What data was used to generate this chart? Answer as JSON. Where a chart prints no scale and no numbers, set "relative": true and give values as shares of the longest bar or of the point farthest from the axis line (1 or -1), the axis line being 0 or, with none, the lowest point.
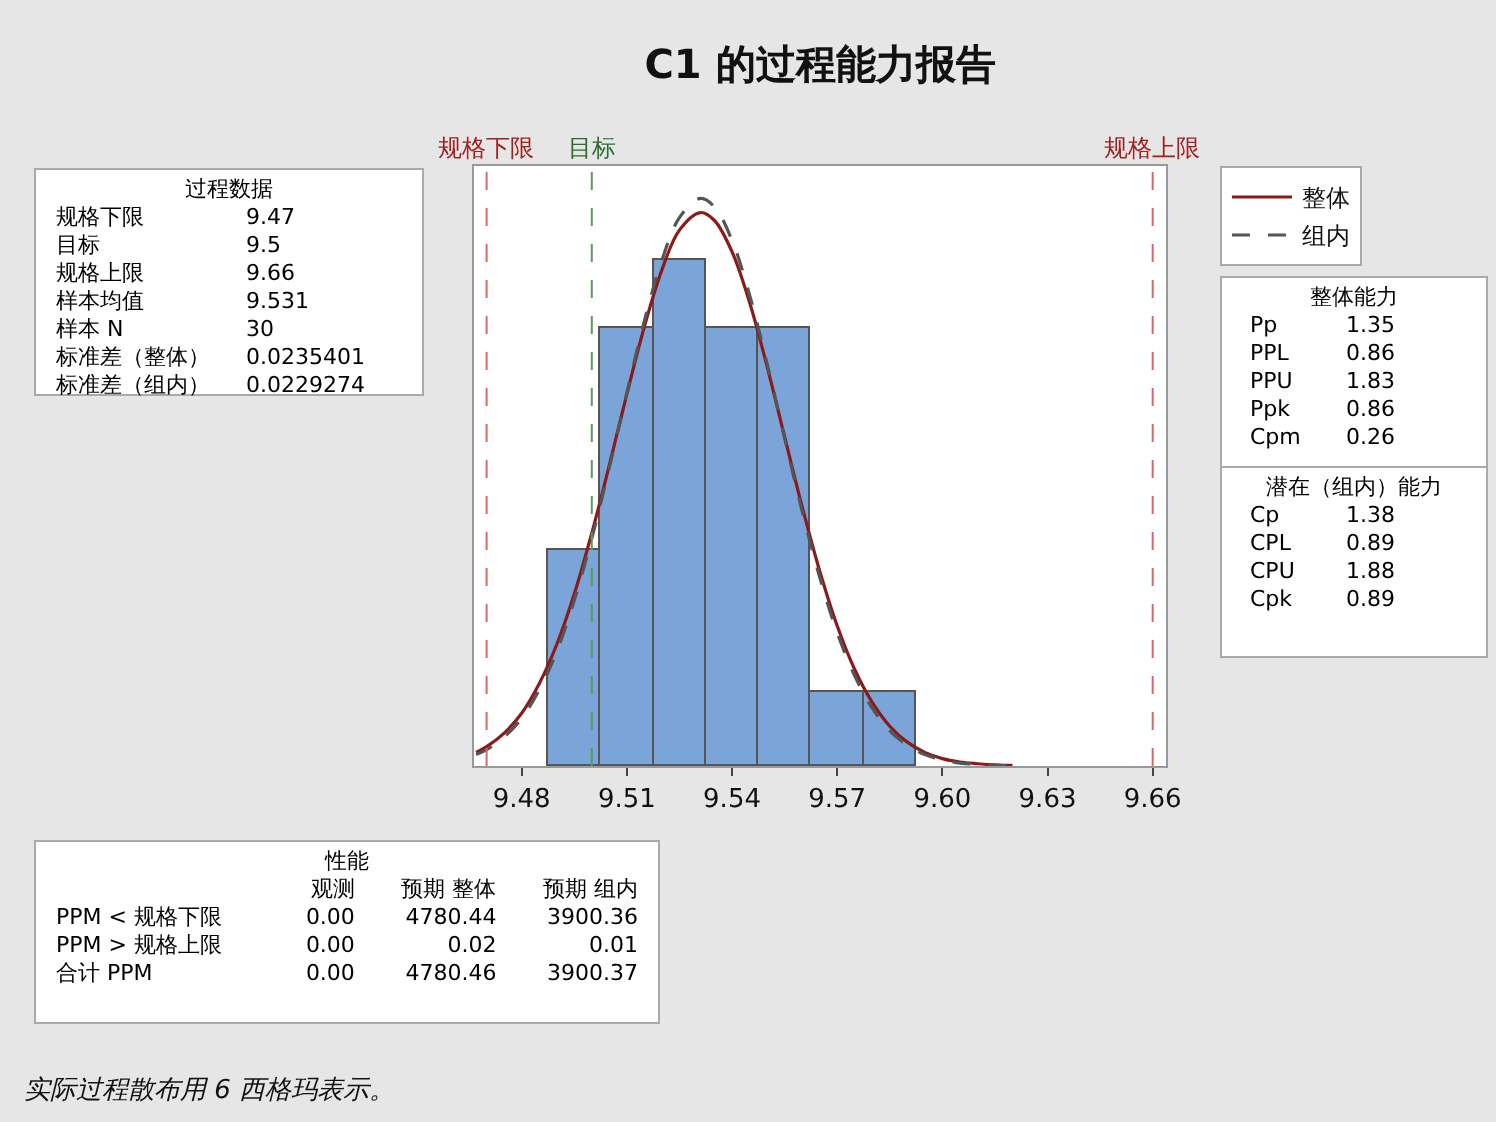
{
  "chart_data": {
    "type": "histogram",
    "title": "C1 的过程能力报告",
    "relative": true,
    "bins": [
      9.4875,
      9.5025,
      9.5175,
      9.5325,
      9.5475,
      9.5625,
      9.5775,
      9.5925
    ],
    "values": [
      0.38,
      0.77,
      0.89,
      0.77,
      0.77,
      0.13,
      0.13
    ],
    "color": "#7ba5d9",
    "series": [
      {
        "type": "line",
        "name": "整体",
        "color": "#8b1a1a",
        "line_style": "solid",
        "x": [
          9.467,
          9.47,
          9.475,
          9.48,
          9.485,
          9.49,
          9.495,
          9.5,
          9.505,
          9.51,
          9.515,
          9.52,
          9.525,
          9.531,
          9.535,
          9.54,
          9.545,
          9.55,
          9.555,
          9.56,
          9.565,
          9.57,
          9.575,
          9.58,
          9.585,
          9.59,
          9.595,
          9.6,
          9.605,
          9.61,
          9.615,
          9.62
        ],
        "values": [
          0.024,
          0.034,
          0.058,
          0.093,
          0.145,
          0.214,
          0.303,
          0.41,
          0.53,
          0.655,
          0.774,
          0.874,
          0.944,
          0.975,
          0.961,
          0.906,
          0.817,
          0.704,
          0.58,
          0.457,
          0.344,
          0.247,
          0.17,
          0.112,
          0.07,
          0.042,
          0.024,
          0.013,
          0.007,
          0.004,
          0.002,
          0.001
        ]
      },
      {
        "type": "line",
        "name": "组内",
        "color": "#555555",
        "line_style": "dashed",
        "x": [
          9.467,
          9.47,
          9.475,
          9.48,
          9.485,
          9.49,
          9.495,
          9.5,
          9.505,
          9.51,
          9.515,
          9.52,
          9.525,
          9.531,
          9.535,
          9.54,
          9.545,
          9.55,
          9.555,
          9.56,
          9.565,
          9.57,
          9.575,
          9.58,
          9.585,
          9.59,
          9.595,
          9.6,
          9.605,
          9.61,
          9.615,
          9.62
        ],
        "values": [
          0.02,
          0.029,
          0.051,
          0.084,
          0.134,
          0.202,
          0.292,
          0.401,
          0.526,
          0.657,
          0.784,
          0.891,
          0.966,
          1,
          0.985,
          0.926,
          0.83,
          0.709,
          0.578,
          0.449,
          0.333,
          0.235,
          0.159,
          0.102,
          0.062,
          0.037,
          0.02,
          0.011,
          0.005,
          0.003,
          0.001,
          0.001
        ]
      }
    ],
    "xlim": [
      9.4664,
      9.6638
    ],
    "xticks": [
      9.48,
      9.51,
      9.54,
      9.57,
      {
        "value": 9.6,
        "label": "9.60"
      },
      9.63,
      9.66
    ],
    "ref_lines": [
      {
        "axis": "x",
        "value": 9.47,
        "label": "规格下限",
        "color": "#e06666",
        "line_style": "dashed"
      },
      {
        "axis": "x",
        "value": 9.5,
        "label": "目标",
        "color": "#5a9a5a",
        "line_style": "dashed"
      },
      {
        "axis": "x",
        "value": 9.66,
        "label": "规格上限",
        "color": "#e06666",
        "line_style": "dashed"
      }
    ],
    "legend": "top right",
    "annotations": [
      "过程数据",
      "规格下限\t9.47",
      "目标\t9.5",
      "规格上限\t9.66",
      "样本均值\t9.531",
      "样本 N\t30",
      "标准差（整体）\t0.0235401",
      "标准差（组内）\t0.0229274",
      "整体能力",
      "Pp\t1.35",
      "PPL\t0.86",
      "PPU\t1.83",
      "Ppk\t0.86",
      "Cpm\t0.26",
      "潜在（组内）能力",
      "Cp\t1.38",
      "CPL\t0.89",
      "CPU\t1.88",
      "Cpk\t0.89",
      "性能",
      "\t观测\t预期 整体\t预期 组内",
      "PPM < 规格下限\t0.00\t4780.44\t3900.36",
      "PPM > 规格上限\t0.00\t0.02\t0.01",
      "合计 PPM\t0.00\t4780.46\t3900.37",
      "实际过程散布用 6 西格玛表示。"
    ]
  }
}
